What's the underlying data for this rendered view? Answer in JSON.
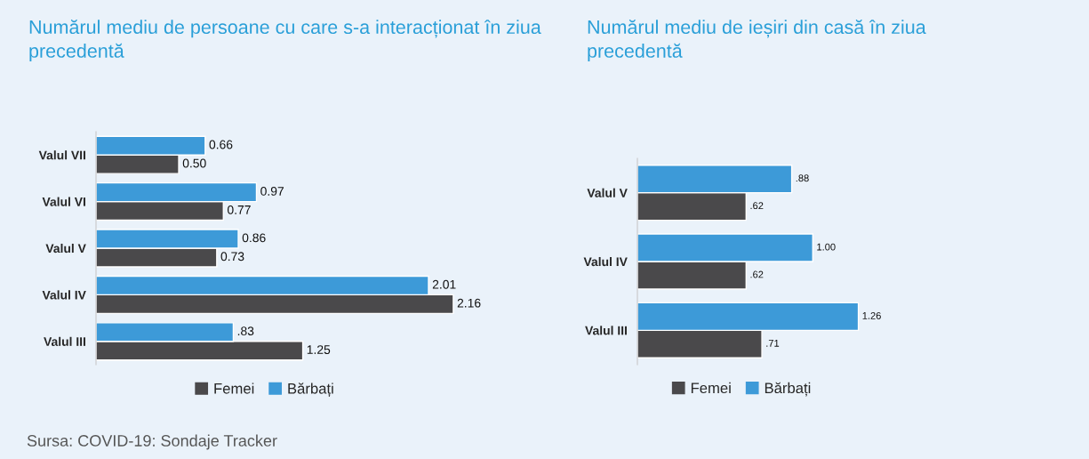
{
  "chart_data": [
    {
      "type": "bar",
      "orientation": "horizontal",
      "title": "Numărul mediu de persoane cu care s-a interacționat în ziua precedentă",
      "categories": [
        "Valul VII",
        "Valul VI",
        "Valul V",
        "Valul IV",
        "Valul III"
      ],
      "tick_labels": "y",
      "legend": "bottom",
      "grid": false,
      "series": [
        {
          "name": "Femei",
          "color": "#4a494b",
          "values": [
            0.5,
            0.77,
            0.73,
            2.16,
            1.25
          ],
          "value_labels": [
            "0.50",
            "0.77",
            "0.73",
            "2.16",
            "1.25"
          ]
        },
        {
          "name": "Bărbați",
          "color": "#3d9ad8",
          "values": [
            0.66,
            0.97,
            0.86,
            2.01,
            0.83
          ],
          "value_labels": [
            "0.66",
            "0.97",
            "0.86",
            "2.01",
            ".83"
          ]
        }
      ],
      "annotations": [
        "Sursa: COVID-19: Sondaje Tracker"
      ]
    },
    {
      "type": "bar",
      "orientation": "horizontal",
      "title": "Numărul mediu de ieșiri din casă în ziua precedentă",
      "categories": [
        "Valul V",
        "Valul IV",
        "Valul III"
      ],
      "tick_labels": "y",
      "legend": "bottom",
      "grid": false,
      "series": [
        {
          "name": "Femei",
          "color": "#4a494b",
          "values": [
            0.62,
            0.62,
            0.71
          ],
          "value_labels": [
            ".62",
            ".62",
            ".71"
          ]
        },
        {
          "name": "Bărbați",
          "color": "#3d9ad8",
          "values": [
            0.88,
            1.0,
            1.26
          ],
          "value_labels": [
            ".88",
            "1.00",
            "1.26"
          ]
        }
      ]
    }
  ]
}
